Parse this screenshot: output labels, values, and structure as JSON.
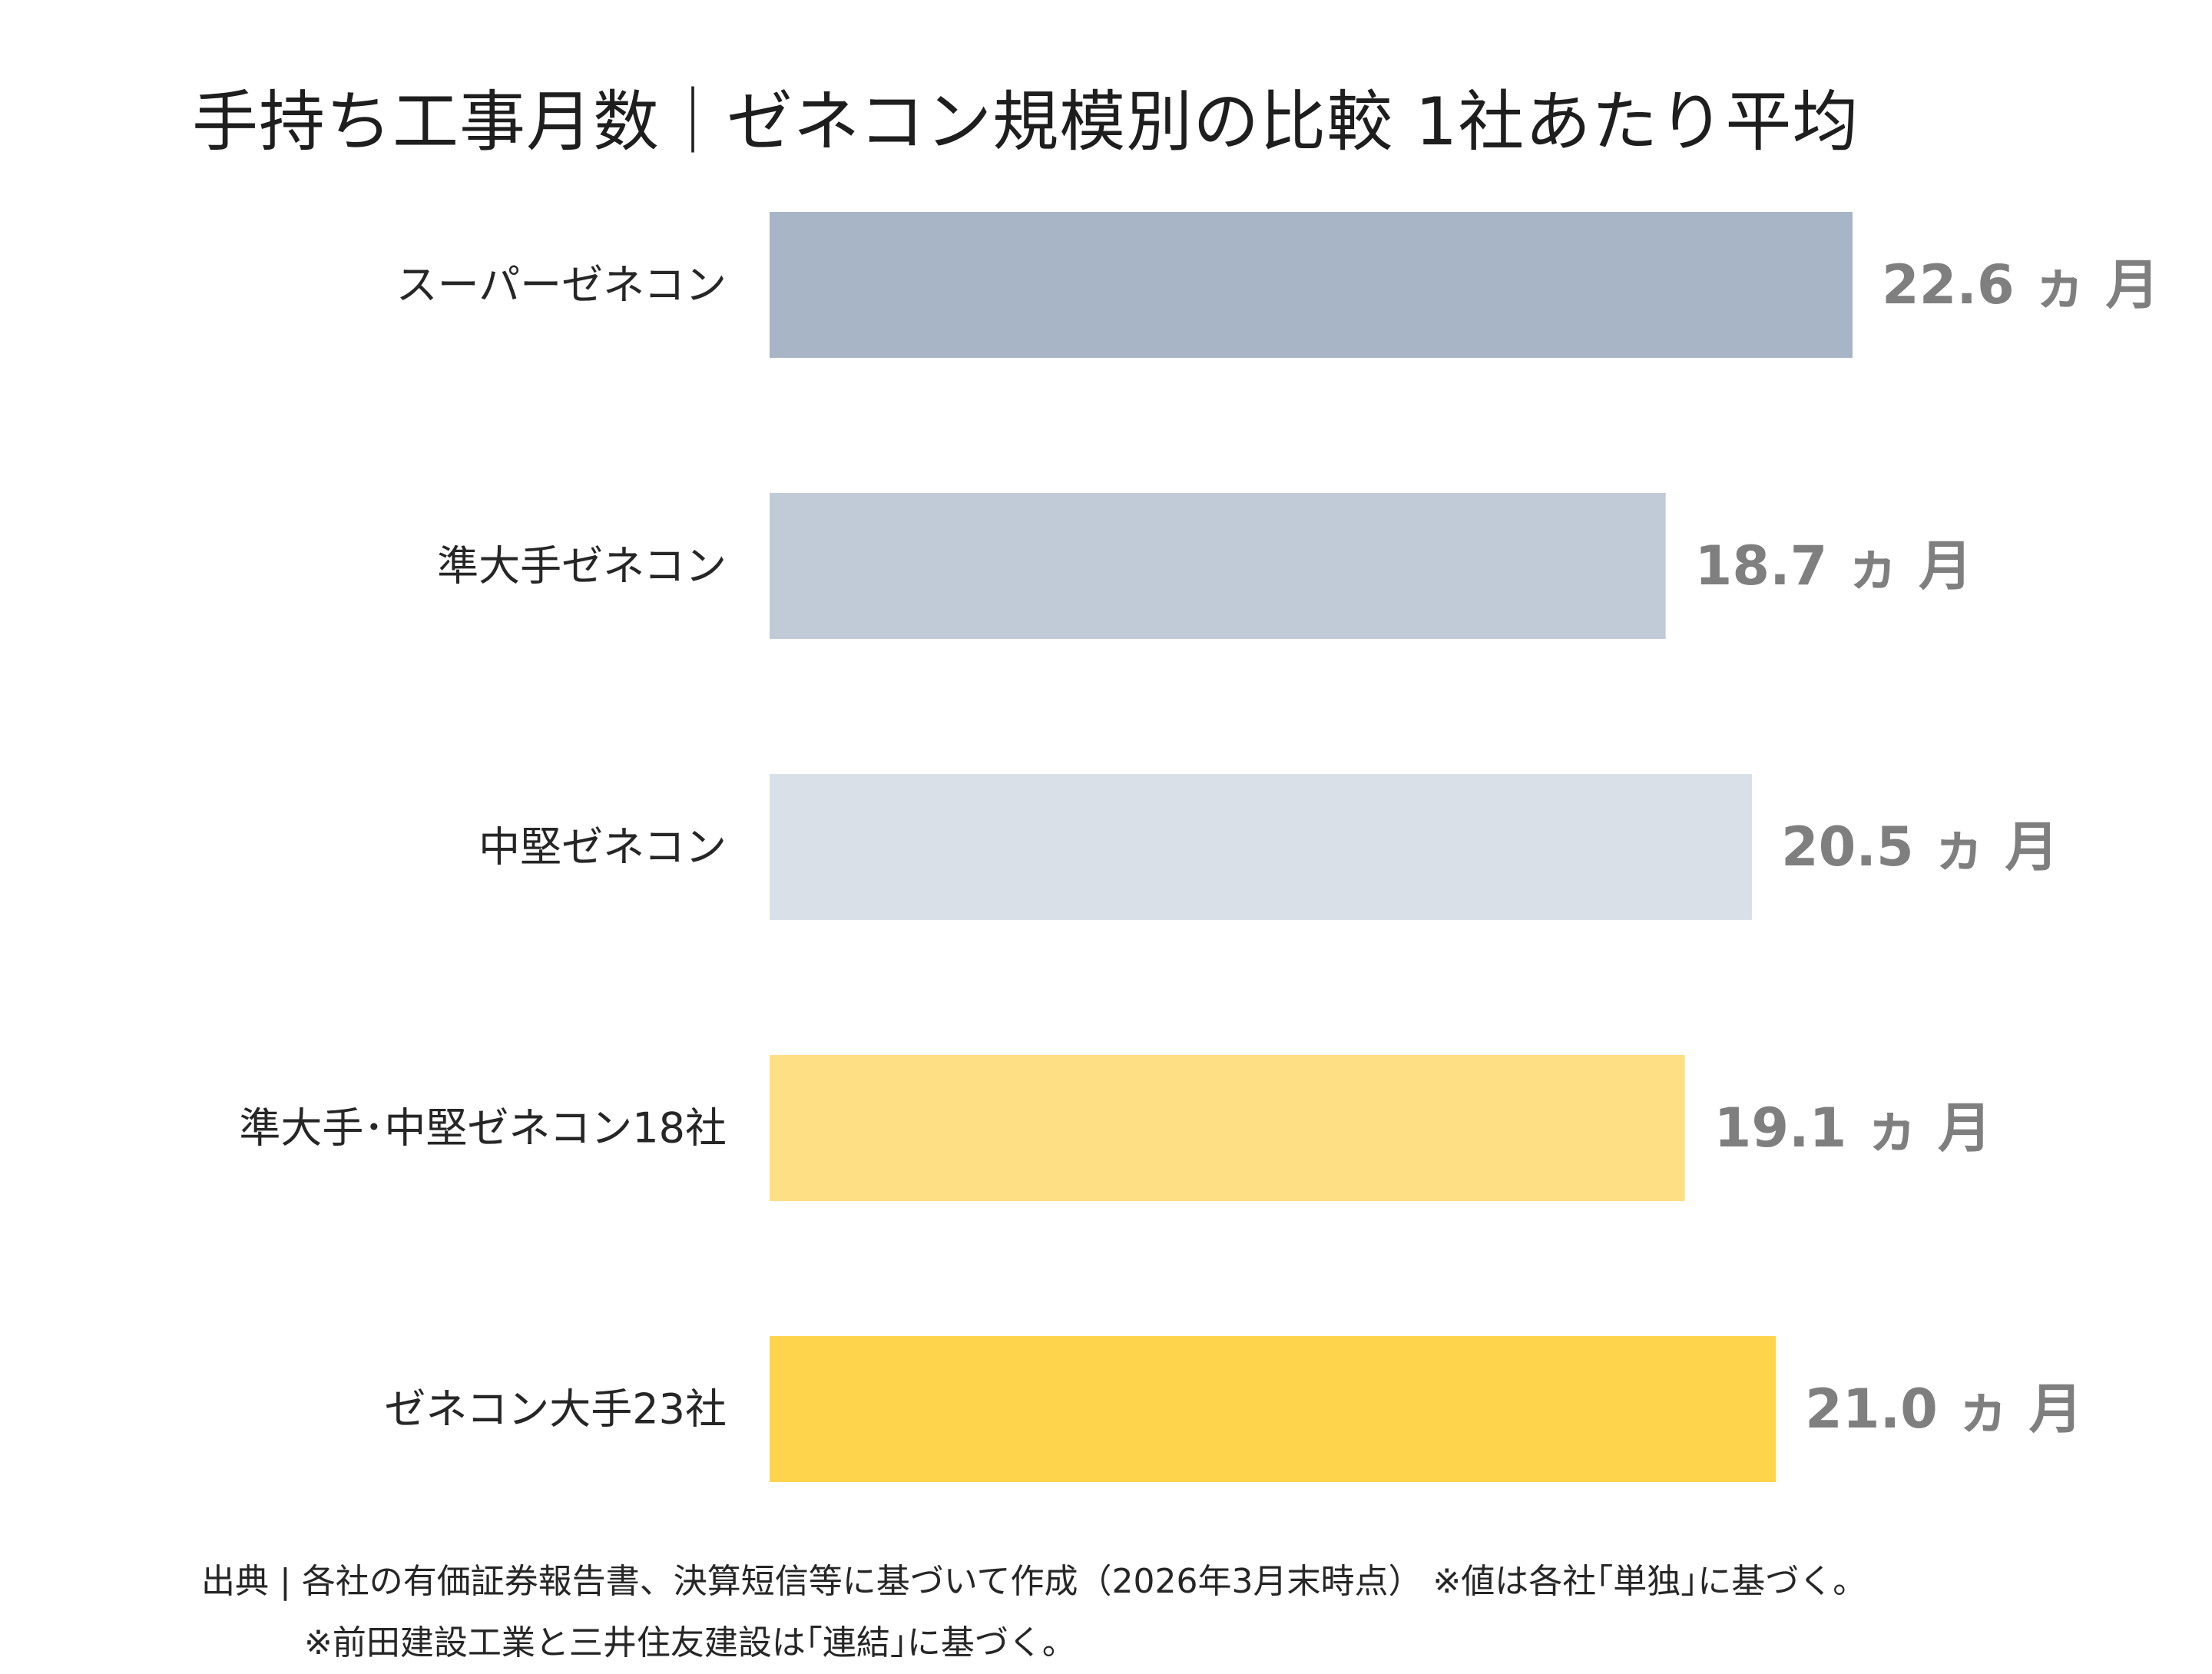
{
  "chart_data": {
    "type": "bar",
    "orientation": "horizontal",
    "title": "手持ち工事月数｜ゼネコン規模別の比較 1社あたり平均",
    "categories": [
      "スーパーゼネコン",
      "準大手ゼネコン",
      "中堅ゼネコン",
      "準大手･中堅ゼネコン18社",
      "ゼネコン大手23社"
    ],
    "values": [
      22.6,
      18.7,
      20.5,
      19.1,
      21.0
    ],
    "value_labels": [
      "22.6 ヵ 月",
      "18.7 ヵ 月",
      "20.5 ヵ 月",
      "19.1 ヵ 月",
      "21.0 ヵ 月"
    ],
    "colors": [
      "#a8b5c7",
      "#c1cbd7",
      "#dae0e8",
      "#fedf84",
      "#fed44d"
    ],
    "xlim": [
      0,
      22.6
    ],
    "grid": false,
    "legend": "none"
  },
  "source": {
    "line1": "出典 | 各社の有価証券報告書、決算短信等に基づいて作成（2026年3月末時点） ※値は各社｢単独｣に基づく。",
    "line2": "※前田建設工業と三井住友建設は｢連結｣に基づく。"
  }
}
